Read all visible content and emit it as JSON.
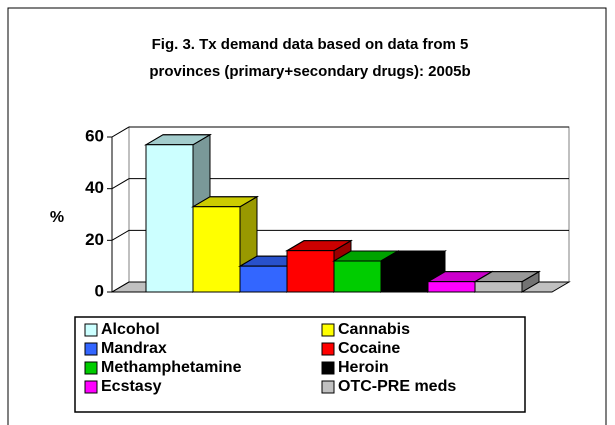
{
  "chart_data": {
    "type": "bar3d",
    "title": [
      "Fig. 3. Tx demand data based on data from 5",
      "provinces (primary+secondary drugs): 2005b"
    ],
    "ylabel": "%",
    "categories": [
      "Alcohol",
      "Cannabis",
      "Mandrax",
      "Cocaine",
      "Methamphetamine",
      "Heroin",
      "Ecstasy",
      "OTC-PRE meds"
    ],
    "values": [
      57,
      33,
      10,
      16,
      12,
      12,
      4,
      4
    ],
    "colors": [
      "#ccffff",
      "#ffff00",
      "#3366ff",
      "#ff0000",
      "#00cc00",
      "#000000",
      "#ff00ff",
      "#c0c0c0"
    ],
    "ylim": [
      0,
      60
    ],
    "yticks": [
      0,
      20,
      40,
      60
    ],
    "grid": true
  }
}
